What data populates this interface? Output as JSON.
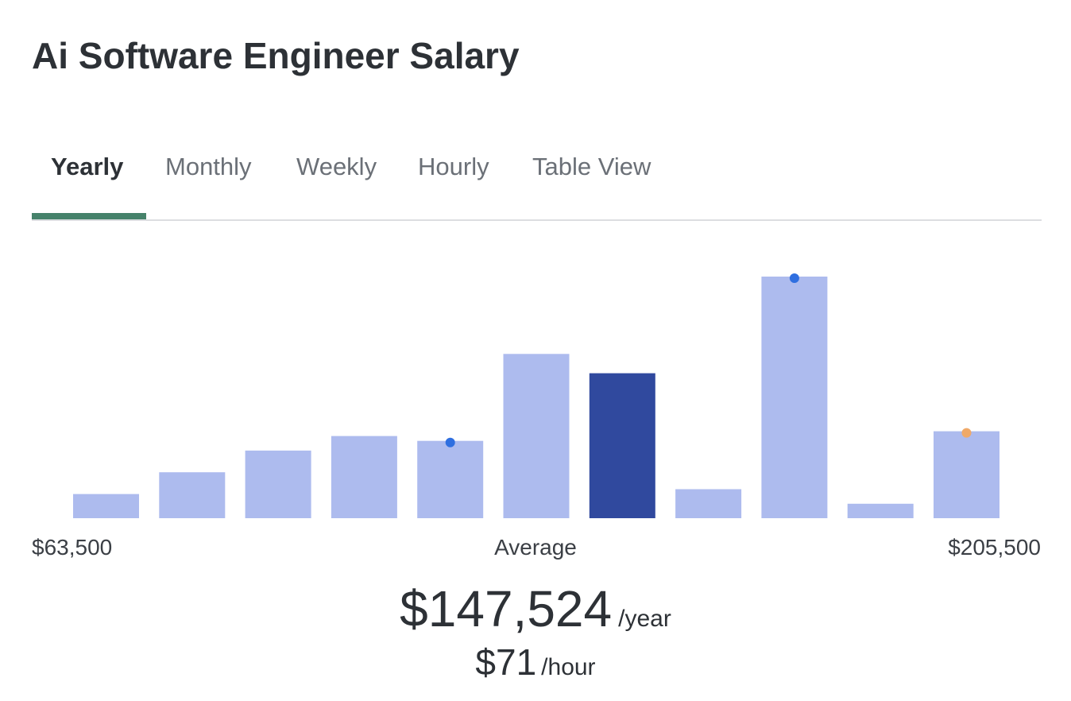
{
  "page": {
    "title": "Ai Software Engineer Salary"
  },
  "tabs": [
    {
      "label": "Yearly",
      "active": true
    },
    {
      "label": "Monthly",
      "active": false
    },
    {
      "label": "Weekly",
      "active": false
    },
    {
      "label": "Hourly",
      "active": false
    },
    {
      "label": "Table View",
      "active": false
    }
  ],
  "colors": {
    "bar": "#adbbee",
    "bar_highlight": "#30499e",
    "marker_blue": "#2f6fe0",
    "marker_orange": "#f0a968",
    "tab_underline": "#46826b"
  },
  "chart_data": {
    "type": "bar",
    "title": "",
    "xlabel": "",
    "ylabel": "",
    "range_min_label": "$63,500",
    "range_max_label": "$205,500",
    "center_label": "Average",
    "values": [
      10,
      19,
      28,
      34,
      32,
      68,
      60,
      12,
      100,
      6,
      36
    ],
    "highlight_index": 6,
    "markers": [
      {
        "index": 4,
        "color": "blue"
      },
      {
        "index": 8,
        "color": "blue"
      },
      {
        "index": 10,
        "color": "orange"
      }
    ],
    "ylim": [
      0,
      100
    ]
  },
  "summary": {
    "yearly_amount": "$147,524",
    "yearly_unit": "/year",
    "hourly_amount": "$71",
    "hourly_unit": "/hour"
  }
}
